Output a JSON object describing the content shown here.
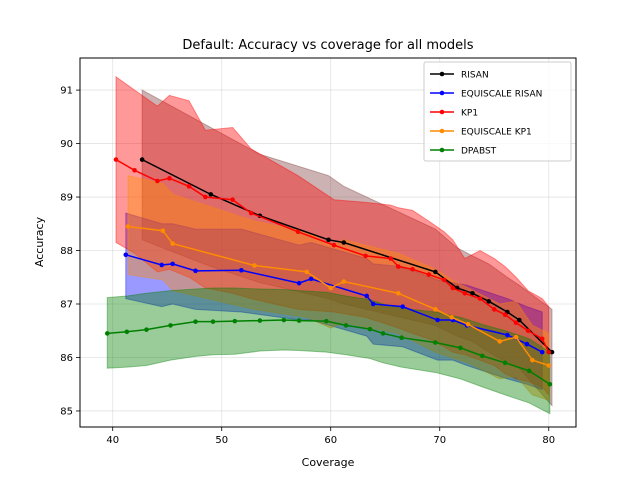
{
  "chart_data": {
    "type": "line",
    "title": "Default: Accuracy vs coverage for all models",
    "xlabel": "Coverage",
    "ylabel": "Accuracy",
    "xlim": [
      37.0,
      82.5
    ],
    "ylim": [
      84.7,
      91.6
    ],
    "xticks": [
      40,
      50,
      60,
      70,
      80
    ],
    "yticks": [
      85,
      86,
      87,
      88,
      89,
      90,
      91
    ],
    "grid": true,
    "legend_position": "top-right",
    "series": [
      {
        "name": "RISAN",
        "color": "#000000",
        "band_color": "#7f3f3f",
        "x": [
          42.7,
          49.0,
          53.5,
          59.8,
          61.2,
          69.6,
          71.6,
          73.0,
          74.5,
          76.2,
          77.3,
          80.3
        ],
        "y": [
          89.7,
          89.05,
          88.65,
          88.2,
          88.15,
          87.6,
          87.3,
          87.2,
          87.05,
          86.85,
          86.7,
          86.1
        ],
        "upper": [
          91.0,
          90.3,
          89.8,
          89.4,
          89.2,
          88.4,
          88.05,
          87.9,
          87.75,
          87.5,
          87.35,
          86.9
        ],
        "lower": [
          88.2,
          87.7,
          87.4,
          87.1,
          87.0,
          86.6,
          86.4,
          86.3,
          86.1,
          85.9,
          85.8,
          85.1
        ]
      },
      {
        "name": "EQUISCALE RISAN",
        "color": "#0000ff",
        "band_color": "#0000ff",
        "x": [
          41.2,
          44.5,
          45.5,
          47.6,
          51.8,
          57.1,
          58.2,
          63.3,
          63.9,
          66.6,
          69.8,
          71.2,
          72.5,
          76.2,
          78.0,
          79.4
        ],
        "y": [
          87.92,
          87.73,
          87.75,
          87.62,
          87.63,
          87.39,
          87.47,
          87.15,
          87.0,
          86.95,
          86.7,
          86.7,
          86.6,
          86.42,
          86.25,
          86.1
        ],
        "upper": [
          88.7,
          88.5,
          88.5,
          88.4,
          88.4,
          88.1,
          88.15,
          87.85,
          87.75,
          87.7,
          87.45,
          87.4,
          87.35,
          87.1,
          86.95,
          86.85
        ],
        "lower": [
          87.1,
          86.95,
          87.0,
          86.9,
          86.85,
          86.7,
          86.7,
          86.4,
          86.25,
          86.2,
          85.95,
          85.95,
          85.85,
          85.6,
          85.5,
          85.4
        ]
      },
      {
        "name": "KP1",
        "color": "#ff0000",
        "band_color": "#ff0000",
        "x": [
          40.3,
          42.0,
          44.1,
          45.2,
          47.0,
          48.5,
          51.0,
          52.7,
          57.0,
          60.3,
          63.2,
          65.5,
          66.2,
          67.5,
          69.0,
          70.4,
          71.2,
          72.3,
          73.7,
          75.0,
          76.0,
          77.0,
          78.1,
          79.4,
          80.0
        ],
        "y": [
          89.7,
          89.5,
          89.3,
          89.35,
          89.2,
          89.0,
          88.95,
          88.7,
          88.35,
          88.1,
          87.9,
          87.85,
          87.7,
          87.65,
          87.55,
          87.45,
          87.3,
          87.2,
          87.1,
          86.9,
          86.8,
          86.65,
          86.5,
          86.35,
          86.1
        ],
        "upper": [
          91.25,
          91.0,
          90.7,
          90.9,
          90.8,
          90.25,
          90.3,
          89.9,
          89.4,
          88.95,
          88.9,
          88.85,
          88.8,
          88.75,
          88.55,
          88.35,
          88.2,
          87.85,
          88.0,
          87.85,
          87.7,
          87.5,
          87.25,
          87.1,
          86.95
        ],
        "lower": [
          88.15,
          87.95,
          87.6,
          87.65,
          87.5,
          87.3,
          87.2,
          87.1,
          86.9,
          86.85,
          86.75,
          86.6,
          86.55,
          86.45,
          86.35,
          86.2,
          86.1,
          86.05,
          85.95,
          85.85,
          85.7,
          85.6,
          85.55,
          85.45,
          85.3
        ]
      },
      {
        "name": "EQUISCALE KP1",
        "color": "#ff8c00",
        "band_color": "#ff8c00",
        "x": [
          41.4,
          44.6,
          45.5,
          53.0,
          57.8,
          60.0,
          61.2,
          66.2,
          69.6,
          71.1,
          72.6,
          75.5,
          77.0,
          78.5,
          80.0
        ],
        "y": [
          88.45,
          88.37,
          88.13,
          87.72,
          87.6,
          87.3,
          87.42,
          87.2,
          86.9,
          86.75,
          86.62,
          86.3,
          86.38,
          85.95,
          85.85
        ],
        "upper": [
          89.4,
          89.25,
          89.05,
          88.55,
          88.35,
          88.1,
          88.2,
          87.95,
          87.65,
          87.45,
          87.3,
          87.0,
          87.05,
          86.6,
          86.45
        ],
        "lower": [
          87.55,
          87.45,
          87.25,
          86.9,
          86.75,
          86.55,
          86.65,
          86.45,
          86.1,
          86.0,
          85.9,
          85.6,
          85.65,
          85.3,
          85.2
        ]
      },
      {
        "name": "DPABST",
        "color": "#008000",
        "band_color": "#008000",
        "x": [
          39.5,
          41.3,
          43.1,
          45.3,
          47.6,
          49.2,
          51.2,
          53.5,
          55.7,
          57.1,
          59.6,
          61.4,
          63.6,
          64.8,
          66.5,
          69.6,
          71.9,
          73.9,
          76.0,
          78.2,
          80.1
        ],
        "y": [
          86.45,
          86.48,
          86.52,
          86.6,
          86.67,
          86.67,
          86.68,
          86.69,
          86.7,
          86.69,
          86.68,
          86.6,
          86.53,
          86.45,
          86.37,
          86.28,
          86.18,
          86.03,
          85.9,
          85.75,
          85.5
        ],
        "upper": [
          87.12,
          87.15,
          87.2,
          87.25,
          87.28,
          87.3,
          87.3,
          87.28,
          87.27,
          87.25,
          87.22,
          87.15,
          87.08,
          87.0,
          86.92,
          86.85,
          86.75,
          86.62,
          86.5,
          86.35,
          86.1
        ],
        "lower": [
          85.8,
          85.82,
          85.85,
          85.95,
          86.02,
          86.05,
          86.06,
          86.12,
          86.14,
          86.13,
          86.1,
          86.05,
          85.98,
          85.9,
          85.82,
          85.72,
          85.6,
          85.45,
          85.3,
          85.15,
          84.95
        ]
      }
    ]
  }
}
